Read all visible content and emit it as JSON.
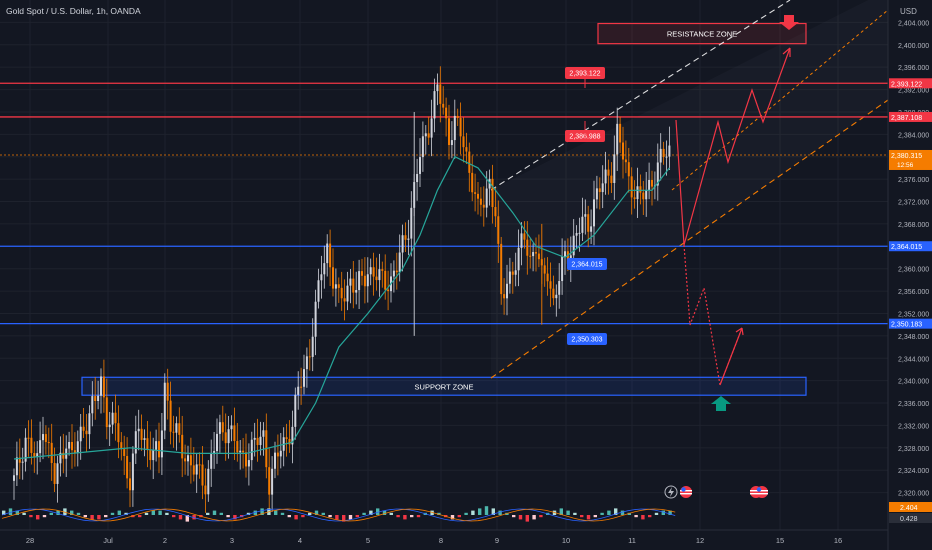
{
  "header": {
    "symbol_title": "Gold Spot / U.S. Dollar, 1h, OANDA"
  },
  "currency": "USD",
  "chart_data": {
    "type": "candlestick",
    "price_range": [
      2316,
      2408
    ],
    "y_ticks": [
      "2,404.000",
      "2,400.000",
      "2,396.000",
      "2,392.000",
      "2,388.000",
      "2,384.000",
      "2,380.000",
      "2,376.000",
      "2,372.000",
      "2,368.000",
      "2,364.000",
      "2,360.000",
      "2,356.000",
      "2,352.000",
      "2,348.000",
      "2,344.000",
      "2,340.000",
      "2,336.000",
      "2,332.000",
      "2,328.000",
      "2,324.000",
      "2,320.000"
    ],
    "x_ticks": [
      "28",
      "Jul",
      "2",
      "3",
      "4",
      "5",
      "8",
      "9",
      "10",
      "11",
      "12",
      "15",
      "16"
    ],
    "price_path": [
      [
        0,
        2322
      ],
      [
        4,
        2330
      ],
      [
        8,
        2325
      ],
      [
        10,
        2333
      ],
      [
        14,
        2322
      ],
      [
        18,
        2330
      ],
      [
        20,
        2326
      ],
      [
        24,
        2332
      ],
      [
        28,
        2336
      ],
      [
        30,
        2340
      ],
      [
        32,
        2334
      ],
      [
        36,
        2330
      ],
      [
        40,
        2322
      ],
      [
        43,
        2332
      ],
      [
        46,
        2328
      ],
      [
        50,
        2326
      ],
      [
        52,
        2340
      ],
      [
        54,
        2332
      ],
      [
        58,
        2328
      ],
      [
        62,
        2324
      ],
      [
        66,
        2322
      ],
      [
        70,
        2330
      ],
      [
        74,
        2332
      ],
      [
        78,
        2326
      ],
      [
        82,
        2328
      ],
      [
        86,
        2330
      ],
      [
        88,
        2322
      ],
      [
        92,
        2328
      ],
      [
        96,
        2332
      ],
      [
        98,
        2338
      ],
      [
        102,
        2346
      ],
      [
        104,
        2352
      ],
      [
        106,
        2360
      ],
      [
        108,
        2364
      ],
      [
        110,
        2358
      ],
      [
        112,
        2354
      ],
      [
        114,
        2356
      ],
      [
        116,
        2358
      ],
      [
        118,
        2356
      ],
      [
        120,
        2358
      ],
      [
        122,
        2360
      ],
      [
        126,
        2358
      ],
      [
        130,
        2358
      ],
      [
        132,
        2360
      ],
      [
        134,
        2364
      ],
      [
        136,
        2368
      ],
      [
        138,
        2374
      ],
      [
        140,
        2380
      ],
      [
        142,
        2384
      ],
      [
        144,
        2388
      ],
      [
        146,
        2392
      ],
      [
        148,
        2388
      ],
      [
        150,
        2384
      ],
      [
        152,
        2386
      ],
      [
        154,
        2384
      ],
      [
        156,
        2380
      ],
      [
        158,
        2376
      ],
      [
        160,
        2370
      ],
      [
        162,
        2372
      ],
      [
        164,
        2376
      ],
      [
        166,
        2370
      ],
      [
        168,
        2354
      ],
      [
        170,
        2358
      ],
      [
        172,
        2360
      ],
      [
        174,
        2362
      ],
      [
        176,
        2366
      ],
      [
        178,
        2362
      ],
      [
        180,
        2364
      ],
      [
        182,
        2358
      ],
      [
        184,
        2360
      ],
      [
        186,
        2354
      ],
      [
        188,
        2358
      ],
      [
        190,
        2362
      ],
      [
        192,
        2364
      ],
      [
        194,
        2366
      ],
      [
        196,
        2368
      ],
      [
        198,
        2368
      ],
      [
        200,
        2372
      ],
      [
        202,
        2374
      ],
      [
        204,
        2376
      ],
      [
        206,
        2378
      ],
      [
        208,
        2384
      ],
      [
        210,
        2380
      ],
      [
        212,
        2376
      ],
      [
        214,
        2374
      ],
      [
        216,
        2372
      ],
      [
        218,
        2374
      ],
      [
        220,
        2376
      ],
      [
        222,
        2378
      ],
      [
        224,
        2380
      ],
      [
        226,
        2382
      ]
    ],
    "ma_path": [
      [
        0,
        2326
      ],
      [
        20,
        2327
      ],
      [
        40,
        2328
      ],
      [
        60,
        2327
      ],
      [
        80,
        2327
      ],
      [
        96,
        2329
      ],
      [
        104,
        2336
      ],
      [
        112,
        2346
      ],
      [
        122,
        2352
      ],
      [
        134,
        2360
      ],
      [
        140,
        2366
      ],
      [
        146,
        2374
      ],
      [
        152,
        2380
      ],
      [
        160,
        2378
      ],
      [
        166,
        2374
      ],
      [
        172,
        2370
      ],
      [
        180,
        2364
      ],
      [
        190,
        2362
      ],
      [
        200,
        2366
      ],
      [
        212,
        2374
      ],
      [
        220,
        2374
      ],
      [
        226,
        2378
      ]
    ],
    "horizontal_lines": [
      {
        "price": 2393.122,
        "color": "#f23645",
        "label": "2,393.122"
      },
      {
        "price": 2387.108,
        "color": "#f23645",
        "label": "2,387.108"
      },
      {
        "price": 2380.315,
        "color": "#f57c00",
        "label": "2,380.315",
        "sub": "12:56"
      },
      {
        "price": 2364.015,
        "color": "#2962ff",
        "label": "2,364.015"
      },
      {
        "price": 2350.183,
        "color": "#2962ff",
        "label": "2,350.183"
      }
    ],
    "chart_labels": [
      {
        "text": "2,393.122",
        "kind": "red"
      },
      {
        "text": "2,386.988",
        "kind": "red"
      },
      {
        "text": "2,364.015",
        "kind": "blue"
      },
      {
        "text": "2,350.303",
        "kind": "blue"
      }
    ],
    "zones": [
      {
        "name": "RESISTANCE ZONE",
        "kind": "resistance"
      },
      {
        "name": "SUPPORT ZONE",
        "kind": "support"
      }
    ],
    "oscillator": {
      "values": [
        "2.404",
        "0.428"
      ],
      "bars": [
        2,
        3,
        2,
        1,
        -1,
        -2,
        -1,
        1,
        2,
        3,
        2,
        1,
        -1,
        -2,
        -2,
        -1,
        1,
        2,
        1,
        -1,
        -1,
        1,
        2,
        2,
        1,
        -1,
        -2,
        -3,
        -2,
        -1,
        1,
        2,
        1,
        -1,
        -2,
        -1,
        1,
        2,
        3,
        3,
        2,
        1,
        -1,
        -2,
        -1,
        1,
        2,
        1,
        -1,
        -2,
        -3,
        -2,
        -1,
        1,
        2,
        3,
        2,
        1,
        -1,
        -2,
        -1,
        -1,
        1,
        2,
        1,
        -1,
        -2,
        -1,
        1,
        2,
        3,
        4,
        3,
        2,
        1,
        -1,
        -2,
        -3,
        -2,
        -1,
        1,
        2,
        3,
        2,
        1,
        -1,
        -2,
        -1,
        1,
        2,
        3,
        2,
        1,
        -1,
        -2,
        -1,
        1,
        2,
        2
      ]
    }
  }
}
